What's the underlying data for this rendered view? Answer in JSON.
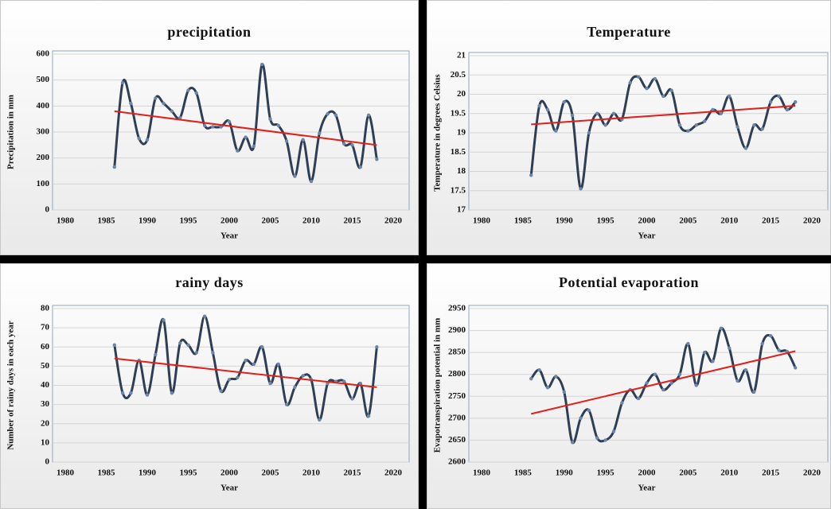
{
  "chart_data": [
    {
      "type": "line",
      "title": "precipitation",
      "x_label": "Year",
      "y_label": "Precipitation  in mm",
      "x": [
        1986,
        1987,
        1988,
        1989,
        1990,
        1991,
        1992,
        1993,
        1994,
        1995,
        1996,
        1997,
        1998,
        1999,
        2000,
        2001,
        2002,
        2003,
        2004,
        2005,
        2006,
        2007,
        2008,
        2009,
        2010,
        2011,
        2012,
        2013,
        2014,
        2015,
        2016,
        2017,
        2018
      ],
      "series": [
        {
          "color": "#2e3f55",
          "values": [
            165,
            490,
            410,
            275,
            270,
            430,
            410,
            380,
            355,
            460,
            450,
            325,
            320,
            320,
            340,
            228,
            280,
            245,
            560,
            350,
            325,
            265,
            130,
            270,
            110,
            295,
            370,
            365,
            255,
            250,
            165,
            365,
            195
          ]
        }
      ],
      "trend": {
        "color": "#e0201a",
        "x": [
          1986,
          2018
        ],
        "values": [
          380,
          250
        ]
      },
      "xlim": [
        1980,
        2020
      ],
      "xticks": [
        1980,
        1985,
        1990,
        1995,
        2000,
        2005,
        2010,
        2015,
        2020
      ],
      "ylim": [
        0,
        600
      ],
      "yticks": [
        0,
        100,
        200,
        300,
        400,
        500,
        600
      ],
      "grid": true
    },
    {
      "type": "line",
      "title": "Temperature",
      "x_label": "Year",
      "y_label": "Temperature  in degrees Celsius",
      "x": [
        1986,
        1987,
        1988,
        1989,
        1990,
        1991,
        1992,
        1993,
        1994,
        1995,
        1996,
        1997,
        1998,
        1999,
        2000,
        2001,
        2002,
        2003,
        2004,
        2005,
        2006,
        2007,
        2008,
        2009,
        2010,
        2011,
        2012,
        2013,
        2014,
        2015,
        2016,
        2017,
        2018
      ],
      "series": [
        {
          "color": "#2e3f55",
          "values": [
            17.9,
            19.7,
            19.6,
            19.05,
            19.8,
            19.45,
            17.55,
            19.0,
            19.5,
            19.2,
            19.5,
            19.35,
            20.3,
            20.45,
            20.15,
            20.4,
            19.95,
            20.1,
            19.2,
            19.05,
            19.2,
            19.3,
            19.6,
            19.5,
            19.95,
            19.15,
            18.6,
            19.2,
            19.1,
            19.8,
            19.95,
            19.6,
            19.8
          ]
        }
      ],
      "trend": {
        "color": "#e0201a",
        "x": [
          1986,
          2018
        ],
        "values": [
          19.22,
          19.7
        ]
      },
      "xlim": [
        1980,
        2020
      ],
      "xticks": [
        1980,
        1985,
        1990,
        1995,
        2000,
        2005,
        2010,
        2015,
        2020
      ],
      "ylim": [
        17,
        21
      ],
      "yticks": [
        17,
        17.5,
        18,
        18.5,
        19,
        19.5,
        20,
        20.5,
        21
      ],
      "grid": true
    },
    {
      "type": "line",
      "title": "rainy days",
      "x_label": "Year",
      "y_label": "Number  of rainy days in each year",
      "x": [
        1986,
        1987,
        1988,
        1989,
        1990,
        1991,
        1992,
        1993,
        1994,
        1995,
        1996,
        1997,
        1998,
        1999,
        2000,
        2001,
        2002,
        2003,
        2004,
        2005,
        2006,
        2007,
        2008,
        2009,
        2010,
        2011,
        2012,
        2013,
        2014,
        2015,
        2016,
        2017,
        2018
      ],
      "series": [
        {
          "color": "#2e3f55",
          "values": [
            61,
            36,
            36,
            53,
            35,
            56,
            74,
            36,
            62,
            61,
            57,
            76,
            57,
            37,
            43,
            44,
            53,
            51,
            60,
            41,
            51,
            30,
            39,
            45,
            43,
            22,
            41,
            42,
            42,
            33,
            41,
            24,
            60
          ]
        }
      ],
      "trend": {
        "color": "#e0201a",
        "x": [
          1986,
          2018
        ],
        "values": [
          54,
          39
        ]
      },
      "xlim": [
        1980,
        2020
      ],
      "xticks": [
        1980,
        1985,
        1990,
        1995,
        2000,
        2005,
        2010,
        2015,
        2020
      ],
      "ylim": [
        0,
        80
      ],
      "yticks": [
        0,
        10,
        20,
        30,
        40,
        50,
        60,
        70,
        80
      ],
      "grid": true
    },
    {
      "type": "line",
      "title": "Potential evaporation",
      "x_label": "Year",
      "y_label": "Evapotranspiration  potential  in mm",
      "x": [
        1986,
        1987,
        1988,
        1989,
        1990,
        1991,
        1992,
        1993,
        1994,
        1995,
        1996,
        1997,
        1998,
        1999,
        2000,
        2001,
        2002,
        2003,
        2004,
        2005,
        2006,
        2007,
        2008,
        2009,
        2010,
        2011,
        2012,
        2013,
        2014,
        2015,
        2016,
        2017,
        2018
      ],
      "series": [
        {
          "color": "#2e3f55",
          "values": [
            2790,
            2810,
            2770,
            2795,
            2760,
            2645,
            2700,
            2718,
            2655,
            2650,
            2670,
            2735,
            2765,
            2745,
            2780,
            2800,
            2765,
            2780,
            2800,
            2870,
            2775,
            2850,
            2830,
            2905,
            2860,
            2785,
            2810,
            2760,
            2870,
            2888,
            2855,
            2852,
            2815
          ]
        }
      ],
      "trend": {
        "color": "#e0201a",
        "x": [
          1986,
          2018
        ],
        "values": [
          2710,
          2853
        ]
      },
      "xlim": [
        1980,
        2020
      ],
      "xticks": [
        1980,
        1985,
        1990,
        1995,
        2000,
        2005,
        2010,
        2015,
        2020
      ],
      "ylim": [
        2600,
        2950
      ],
      "yticks": [
        2600,
        2650,
        2700,
        2750,
        2800,
        2850,
        2900,
        2950
      ],
      "grid": true
    }
  ]
}
